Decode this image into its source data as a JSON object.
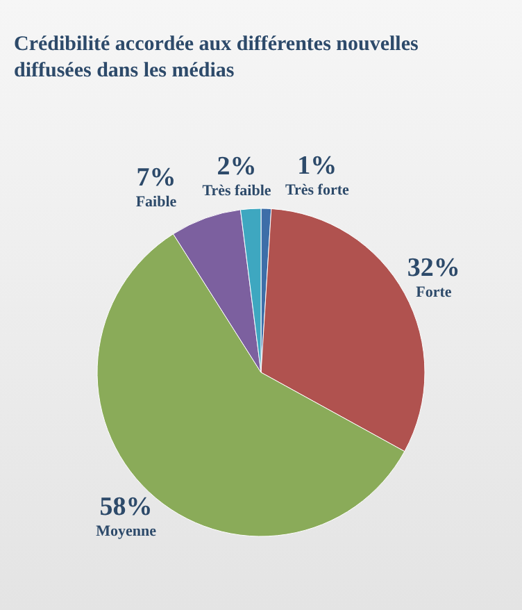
{
  "chart_data": {
    "type": "pie",
    "title": "Crédibilité accordée aux différentes nouvelles diffusées dans les médias",
    "categories": [
      "Très forte",
      "Forte",
      "Moyenne",
      "Faible",
      "Très faible"
    ],
    "values": [
      1,
      32,
      58,
      7,
      2
    ],
    "colors": [
      "#3d6ea8",
      "#b0524f",
      "#8aab59",
      "#7c609f",
      "#3ea7c0"
    ],
    "value_labels": [
      "1%",
      "32%",
      "58%",
      "7%",
      "2%"
    ],
    "legend": false
  }
}
